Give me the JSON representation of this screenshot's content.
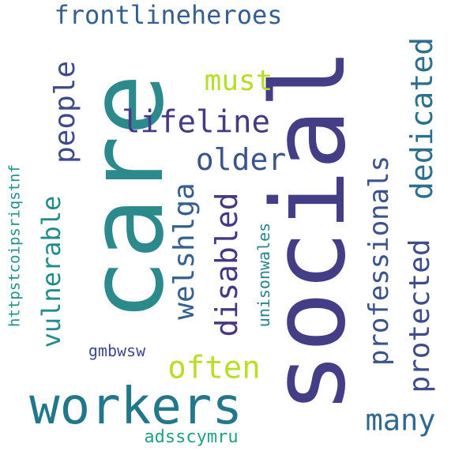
{
  "word_cloud": {
    "words": [
      {
        "text": "social",
        "color": "#433e85"
      },
      {
        "text": "care",
        "color": "#2c8a8d"
      },
      {
        "text": "workers",
        "color": "#22778a"
      },
      {
        "text": "frontlineheroes",
        "color": "#35608d"
      },
      {
        "text": "lifeline",
        "color": "#443b84"
      },
      {
        "text": "must",
        "color": "#b5de2b"
      },
      {
        "text": "older",
        "color": "#3a548c"
      },
      {
        "text": "people",
        "color": "#3e4a89"
      },
      {
        "text": "vulnerable",
        "color": "#228c8d"
      },
      {
        "text": "welshlga",
        "color": "#355f8d"
      },
      {
        "text": "disabled",
        "color": "#453781"
      },
      {
        "text": "professionals",
        "color": "#3b528b"
      },
      {
        "text": "dedicated",
        "color": "#2d708e"
      },
      {
        "text": "protected",
        "color": "#3e4c8a"
      },
      {
        "text": "often",
        "color": "#b8de29"
      },
      {
        "text": "many",
        "color": "#31688e"
      },
      {
        "text": "unisonwales",
        "color": "#26828e"
      },
      {
        "text": "httpstcoipsriqstnf",
        "color": "#21918c"
      },
      {
        "text": "gmbwsw",
        "color": "#3f4889"
      },
      {
        "text": "adsscymru",
        "color": "#1fa187"
      }
    ]
  }
}
